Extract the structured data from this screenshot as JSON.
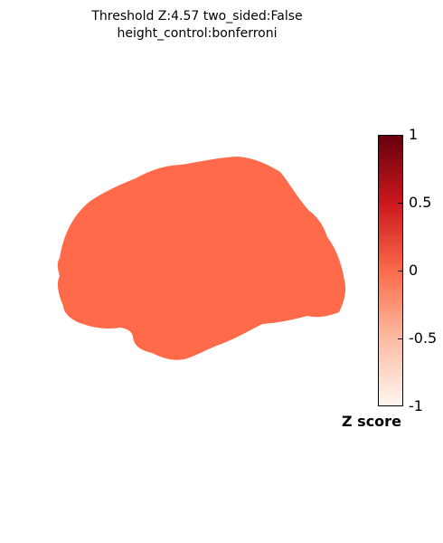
{
  "title": {
    "line1": "Threshold Z:4.57  two_sided:False",
    "line2": "height_control:bonferroni"
  },
  "brain": {
    "fill_color": "#ff6b4a"
  },
  "colorbar": {
    "colormap": "Reds",
    "color_stops": [
      "#fff5f0",
      "#fcbba1",
      "#fb6a4a",
      "#cb181d",
      "#67000d"
    ],
    "ticks": [
      "1",
      "0.5",
      "0",
      "-0.5",
      "-1"
    ],
    "label": "Z score"
  }
}
